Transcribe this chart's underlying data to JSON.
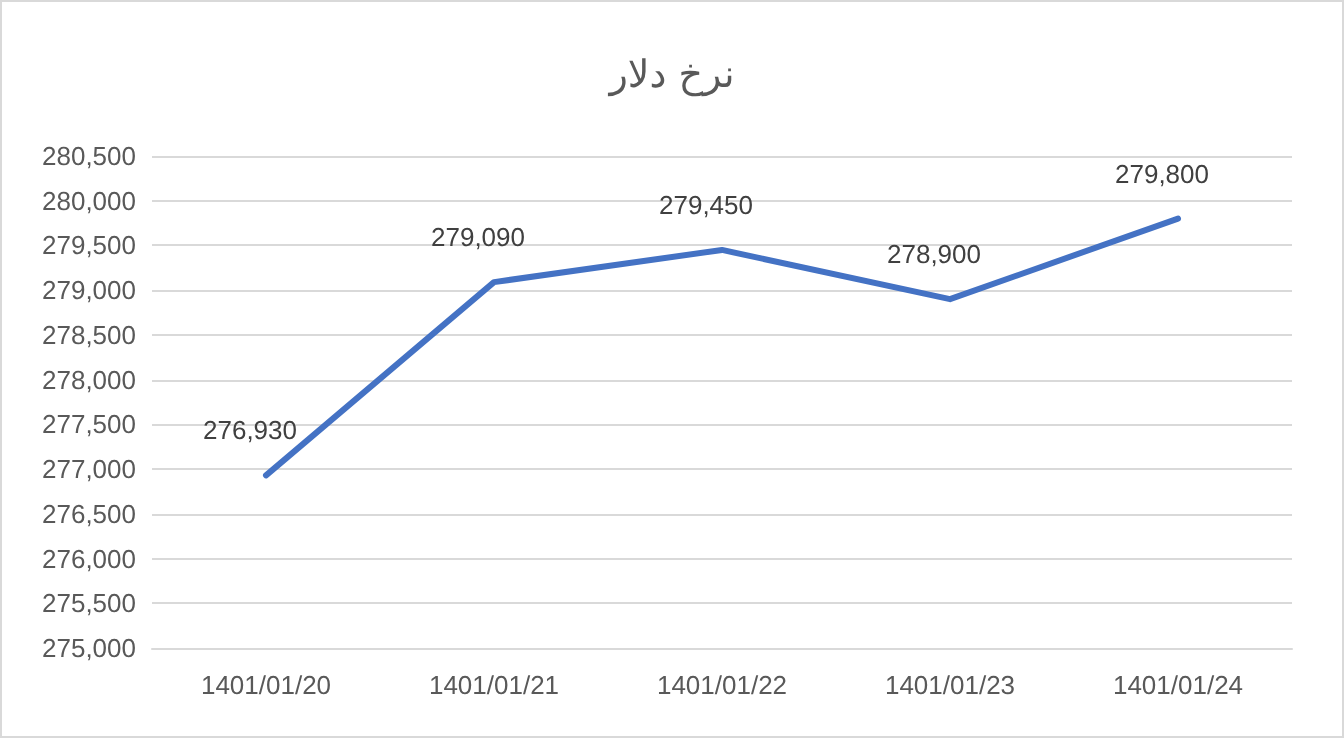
{
  "chart_data": {
    "type": "line",
    "title": "نرخ دلار",
    "categories": [
      "1401/01/20",
      "1401/01/21",
      "1401/01/22",
      "1401/01/23",
      "1401/01/24"
    ],
    "series": [
      {
        "color": "#4472c4",
        "values": [
          276930,
          279090,
          279450,
          278900,
          279800
        ],
        "value_labels": [
          "276,930",
          "279,090",
          "279,450",
          "278,900",
          "279,800"
        ]
      }
    ],
    "ylim": [
      275000,
      280500
    ],
    "yticks": [
      {
        "value": 275000,
        "label": "275,000"
      },
      {
        "value": 275500,
        "label": "275,500"
      },
      {
        "value": 276000,
        "label": "276,000"
      },
      {
        "value": 276500,
        "label": "276,500"
      },
      {
        "value": 277000,
        "label": "277,000"
      },
      {
        "value": 277500,
        "label": "277,500"
      },
      {
        "value": 278000,
        "label": "278,000"
      },
      {
        "value": 278500,
        "label": "278,500"
      },
      {
        "value": 279000,
        "label": "279,000"
      },
      {
        "value": 279500,
        "label": "279,500"
      },
      {
        "value": 280000,
        "label": "280,000"
      },
      {
        "value": 280500,
        "label": "280,500"
      }
    ],
    "grid": "y",
    "marker": "none",
    "line_style": "solid"
  }
}
